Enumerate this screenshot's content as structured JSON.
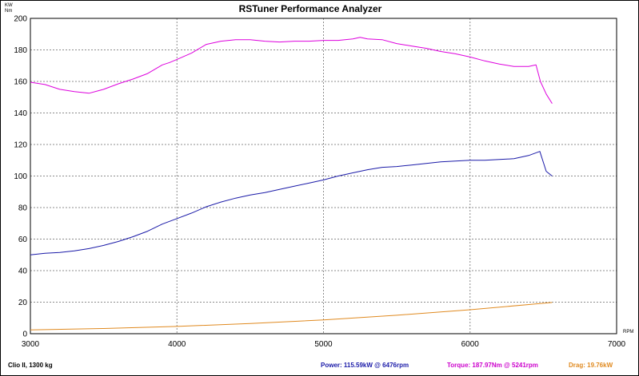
{
  "chart_data": {
    "type": "line",
    "title": "RSTuner Performance Analyzer",
    "ylabel": "KW\nNm",
    "xlabel": "RPM",
    "xlim": [
      3000,
      7000
    ],
    "ylim": [
      0,
      200
    ],
    "xticks": [
      3000,
      4000,
      5000,
      6000,
      7000
    ],
    "yticks": [
      0,
      20,
      40,
      60,
      80,
      100,
      120,
      140,
      160,
      180,
      200
    ],
    "grid": true,
    "series": [
      {
        "name": "Torque",
        "color": "#dd00dd",
        "x": [
          3000,
          3100,
          3200,
          3300,
          3400,
          3500,
          3600,
          3700,
          3800,
          3900,
          3950,
          4000,
          4100,
          4200,
          4300,
          4400,
          4500,
          4600,
          4700,
          4800,
          4900,
          5000,
          5100,
          5200,
          5250,
          5300,
          5400,
          5500,
          5600,
          5700,
          5800,
          5900,
          6000,
          6100,
          6200,
          6300,
          6400,
          6450,
          6480,
          6520,
          6560
        ],
        "values": [
          159.5,
          158,
          155,
          153.5,
          152.5,
          155,
          158.5,
          161.5,
          165,
          170.5,
          172,
          174,
          178,
          183.5,
          185.5,
          186.5,
          186.5,
          185.5,
          185,
          185.5,
          185.5,
          186,
          186,
          187,
          188,
          187,
          186.5,
          184,
          182.5,
          181,
          179,
          177.5,
          175.5,
          173,
          171,
          169.5,
          169.5,
          170.5,
          160,
          152,
          146
        ]
      },
      {
        "name": "Power",
        "color": "#1a1aa8",
        "x": [
          3000,
          3100,
          3200,
          3300,
          3400,
          3500,
          3600,
          3700,
          3800,
          3900,
          4000,
          4100,
          4200,
          4300,
          4400,
          4500,
          4600,
          4700,
          4800,
          4900,
          5000,
          5100,
          5200,
          5300,
          5400,
          5500,
          5600,
          5700,
          5800,
          5900,
          6000,
          6100,
          6200,
          6300,
          6400,
          6476,
          6520,
          6560
        ],
        "values": [
          50,
          51,
          51.5,
          52.5,
          54,
          56,
          58.5,
          61.5,
          65,
          69.5,
          73,
          76.5,
          80.5,
          83.5,
          86,
          88,
          89.5,
          91.5,
          93.5,
          95.5,
          97.5,
          100,
          102,
          104,
          105.5,
          106,
          107,
          108,
          109,
          109.5,
          110,
          110,
          110.5,
          111,
          113,
          115.6,
          103,
          100
        ]
      },
      {
        "name": "Drag",
        "color": "#e08a20",
        "x": [
          3000,
          3500,
          4000,
          4500,
          5000,
          5500,
          6000,
          6560
        ],
        "values": [
          2.4,
          3.3,
          4.6,
          6.5,
          8.7,
          11.7,
          15.2,
          19.8
        ]
      }
    ]
  },
  "footer": {
    "vehicle": "Clio II, 1300 kg",
    "power": "Power: 115.59kW @ 6476rpm",
    "torque": "Torque: 187.97Nm @ 5241rpm",
    "drag": "Drag: 19.76kW",
    "power_color": "#1a1aa8",
    "torque_color": "#cc00cc",
    "drag_color": "#e08a20"
  }
}
